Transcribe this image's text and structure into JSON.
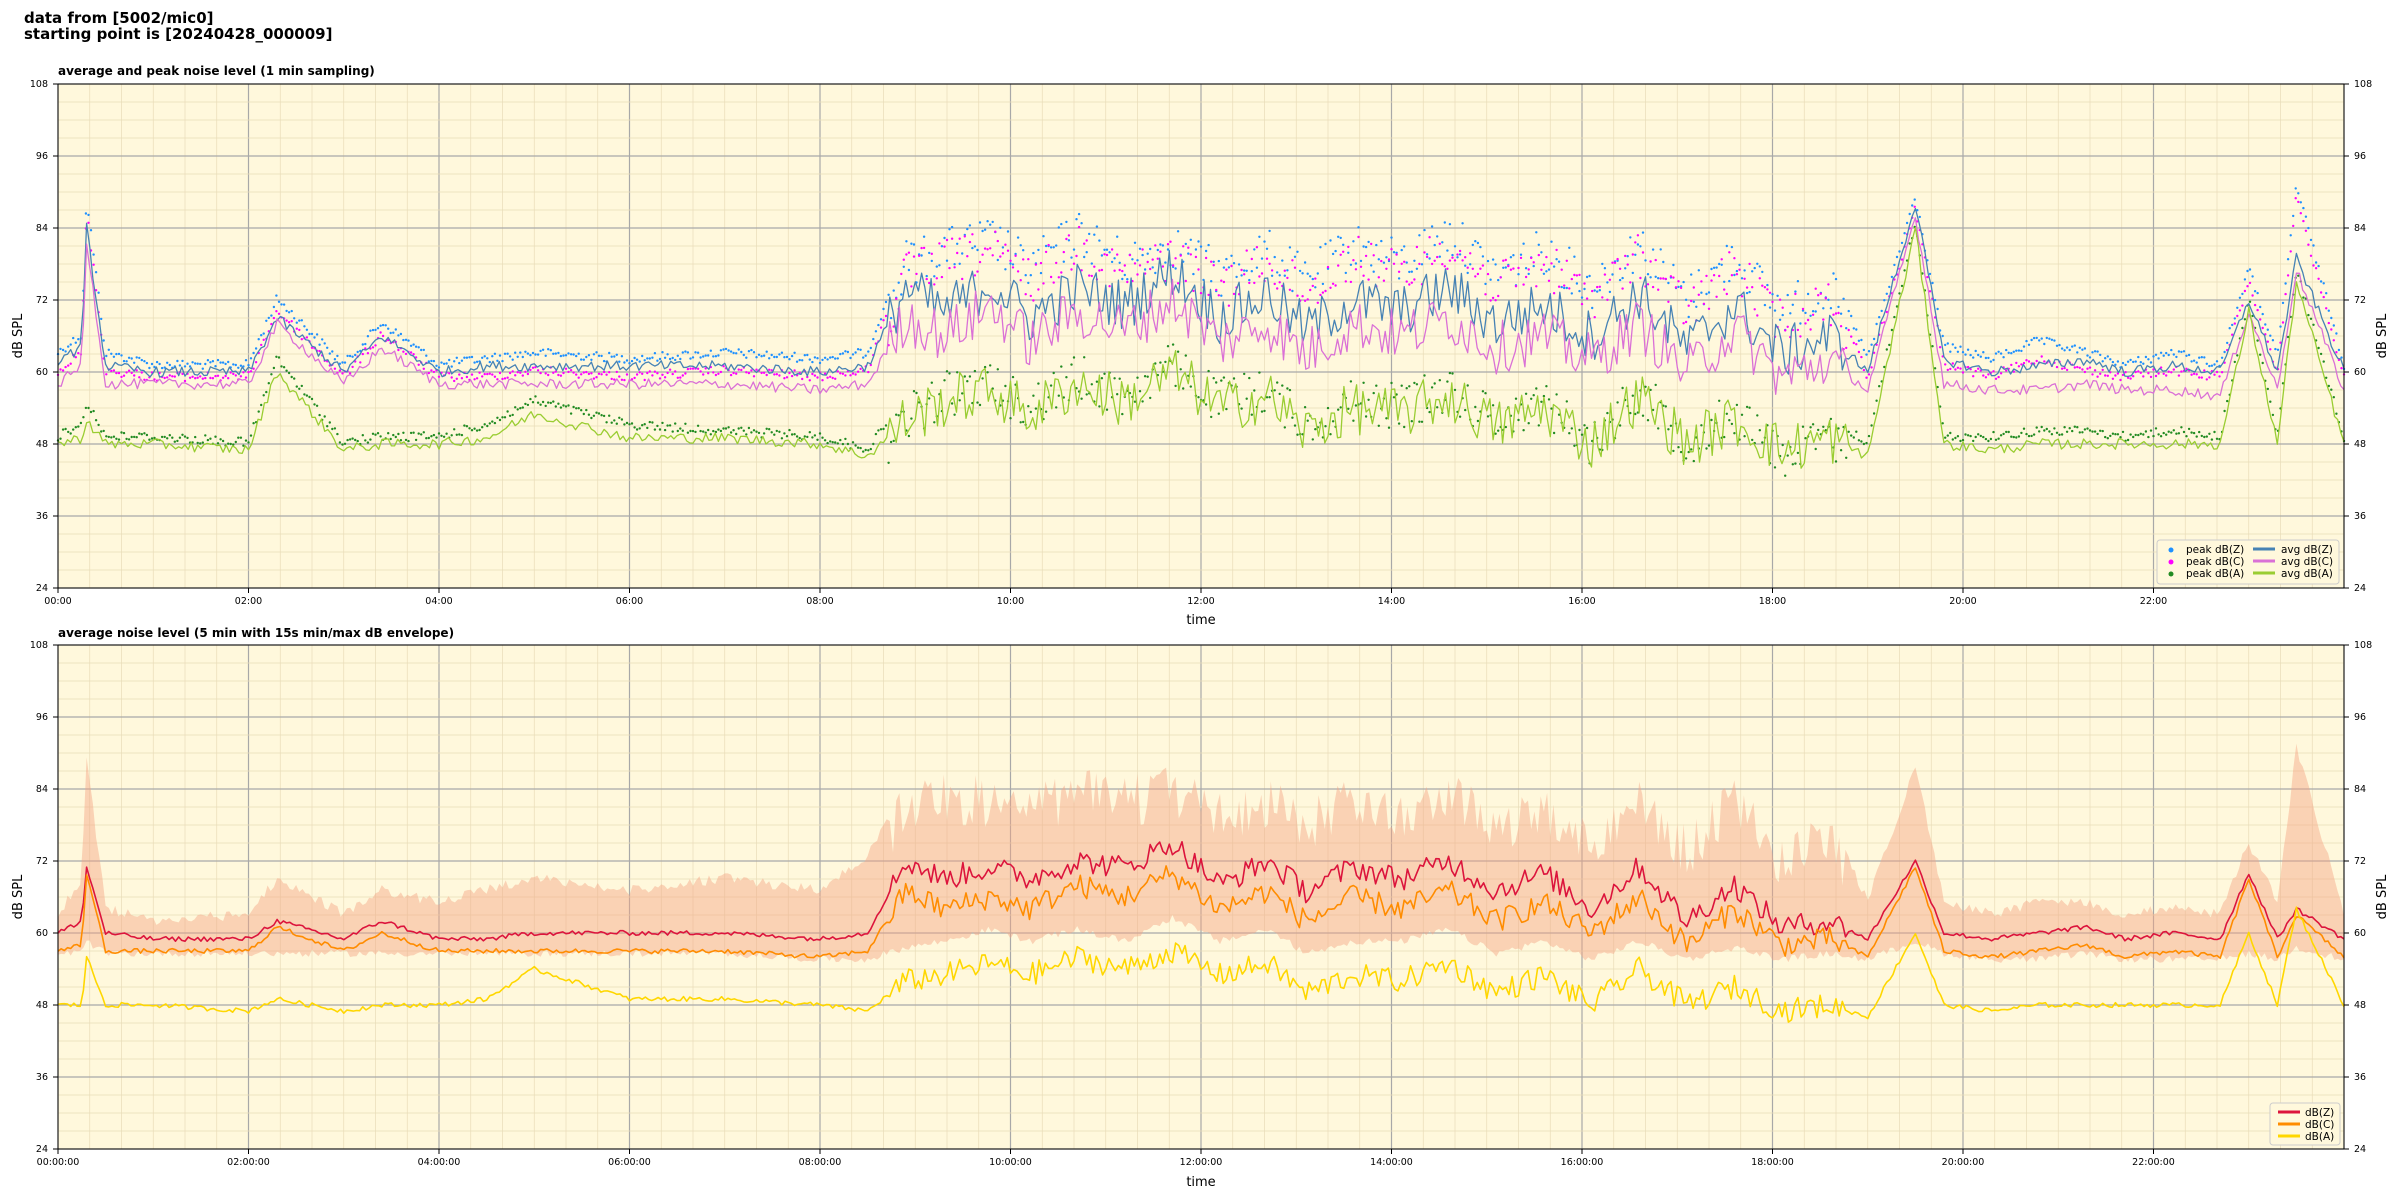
{
  "header": {
    "line1": "data from [5002/mic0]",
    "line2": "starting point is [20240428_000009]"
  },
  "colors": {
    "plot_bg": "#fff8dc",
    "peak_z": "#1e90ff",
    "peak_c": "#ff00ff",
    "peak_a": "#228b22",
    "avg_z": "#4682b4",
    "avg_c": "#da70d6",
    "avg_a": "#9acd32",
    "dBZ": "#dc143c",
    "dBC": "#ff8c00",
    "dBA": "#ffd700",
    "envelope": "#f4a582"
  },
  "chart_data": [
    {
      "type": "line",
      "title": "average and peak noise level (1 min sampling)",
      "xlabel": "time",
      "ylabel": "dB SPL",
      "x_unit": "hours",
      "xlim": [
        0,
        24
      ],
      "ylim": [
        24,
        108
      ],
      "yticks": [
        24,
        36,
        48,
        60,
        72,
        84,
        96,
        108
      ],
      "xtick_labels": [
        "00:00",
        "02:00",
        "04:00",
        "06:00",
        "08:00",
        "10:00",
        "12:00",
        "14:00",
        "16:00",
        "18:00",
        "20:00",
        "22:00"
      ],
      "grid": true,
      "legend_position": "bottom-right",
      "x": [
        0,
        0.25,
        0.3,
        0.5,
        1,
        2,
        2.3,
        3,
        3.4,
        4,
        4.5,
        5,
        6,
        7,
        8,
        8.5,
        8.9,
        9.3,
        9.8,
        10.2,
        10.7,
        11.2,
        11.7,
        12.2,
        12.7,
        13.1,
        13.6,
        14.1,
        14.6,
        15.1,
        15.6,
        16.1,
        16.6,
        17.1,
        17.6,
        18.1,
        18.6,
        19.0,
        19.5,
        19.8,
        20.3,
        20.8,
        21.3,
        21.7,
        22.2,
        22.7,
        23.0,
        23.3,
        23.5,
        24
      ],
      "series": [
        {
          "name": "avg dB(Z)",
          "style": "line",
          "values": [
            62,
            64,
            84,
            61,
            60,
            60,
            69,
            60,
            66,
            60,
            61,
            61,
            61,
            61,
            60,
            61,
            74,
            70,
            75,
            69,
            74,
            71,
            77,
            69,
            73,
            67,
            72,
            70,
            74,
            68,
            71,
            66,
            73,
            64,
            71,
            63,
            66,
            60,
            88,
            62,
            60,
            61,
            62,
            60,
            61,
            60,
            72,
            60,
            79,
            60
          ]
        },
        {
          "name": "avg dB(C)",
          "style": "line",
          "values": [
            58,
            61,
            82,
            58,
            58,
            58,
            68,
            58,
            64,
            58,
            58,
            58,
            58,
            58,
            57,
            58,
            69,
            66,
            71,
            65,
            70,
            67,
            72,
            65,
            68,
            63,
            68,
            66,
            69,
            64,
            66,
            62,
            68,
            60,
            67,
            59,
            62,
            57,
            86,
            58,
            57,
            57,
            58,
            57,
            57,
            56,
            70,
            57,
            77,
            57
          ]
        },
        {
          "name": "avg dB(A)",
          "style": "line",
          "values": [
            48,
            49,
            52,
            48,
            48,
            47,
            60,
            47,
            48,
            48,
            49,
            53,
            49,
            49,
            48,
            46,
            52,
            55,
            57,
            53,
            58,
            55,
            60,
            54,
            56,
            50,
            54,
            53,
            56,
            51,
            54,
            48,
            56,
            48,
            52,
            47,
            49,
            46,
            84,
            48,
            47,
            48,
            48,
            48,
            48,
            48,
            70,
            48,
            75,
            48
          ]
        },
        {
          "name": "peak dB(Z)",
          "style": "scatter",
          "values": [
            64,
            67,
            90,
            64,
            62,
            62,
            73,
            62,
            69,
            62,
            63,
            64,
            63,
            64,
            63,
            64,
            82,
            84,
            86,
            81,
            87,
            82,
            85,
            80,
            84,
            79,
            85,
            82,
            87,
            80,
            84,
            78,
            85,
            76,
            83,
            74,
            78,
            63,
            90,
            65,
            63,
            66,
            64,
            62,
            64,
            62,
            78,
            63,
            92,
            62
          ]
        },
        {
          "name": "peak dB(C)",
          "style": "scatter",
          "values": [
            61,
            64,
            88,
            61,
            60,
            60,
            71,
            60,
            67,
            60,
            60,
            61,
            60,
            61,
            60,
            61,
            80,
            82,
            84,
            79,
            85,
            80,
            83,
            78,
            82,
            77,
            83,
            80,
            85,
            78,
            82,
            76,
            83,
            74,
            81,
            72,
            76,
            60,
            88,
            62,
            60,
            63,
            61,
            60,
            61,
            60,
            76,
            60,
            90,
            60
          ]
        },
        {
          "name": "peak dB(A)",
          "style": "scatter",
          "values": [
            50,
            52,
            56,
            50,
            50,
            49,
            63,
            49,
            50,
            50,
            52,
            56,
            52,
            51,
            50,
            48,
            56,
            60,
            62,
            58,
            63,
            60,
            65,
            59,
            61,
            55,
            59,
            58,
            61,
            56,
            59,
            52,
            61,
            52,
            57,
            50,
            53,
            49,
            86,
            50,
            50,
            51,
            51,
            50,
            51,
            50,
            73,
            50,
            78,
            50
          ]
        }
      ]
    },
    {
      "type": "line",
      "title": "average noise level (5 min with 15s min/max dB envelope)",
      "xlabel": "time",
      "ylabel": "dB SPL",
      "x_unit": "hours",
      "xlim": [
        0,
        24
      ],
      "ylim": [
        24,
        108
      ],
      "yticks": [
        24,
        36,
        48,
        60,
        72,
        84,
        96,
        108
      ],
      "xtick_labels": [
        "00:00:00",
        "02:00:00",
        "04:00:00",
        "06:00:00",
        "08:00:00",
        "10:00:00",
        "12:00:00",
        "14:00:00",
        "16:00:00",
        "18:00:00",
        "20:00:00",
        "22:00:00"
      ],
      "grid": true,
      "legend_position": "bottom-right",
      "x": [
        0,
        0.25,
        0.3,
        0.5,
        1,
        2,
        2.3,
        3,
        3.4,
        4,
        4.5,
        5,
        6,
        7,
        8,
        8.5,
        8.9,
        9.3,
        9.8,
        10.2,
        10.7,
        11.2,
        11.7,
        12.2,
        12.7,
        13.1,
        13.6,
        14.1,
        14.6,
        15.1,
        15.6,
        16.1,
        16.6,
        17.1,
        17.6,
        18.1,
        18.6,
        19.0,
        19.5,
        19.8,
        20.3,
        20.8,
        21.3,
        21.7,
        22.2,
        22.7,
        23.0,
        23.3,
        23.5,
        24
      ],
      "envelope_max": [
        64,
        70,
        90,
        65,
        63,
        64,
        70,
        64,
        68,
        66,
        68,
        70,
        68,
        70,
        68,
        74,
        86,
        87,
        86,
        84,
        88,
        86,
        88,
        84,
        86,
        82,
        86,
        84,
        88,
        82,
        85,
        80,
        86,
        78,
        86,
        76,
        80,
        66,
        89,
        66,
        64,
        66,
        66,
        64,
        65,
        64,
        76,
        66,
        92,
        64
      ],
      "envelope_min": [
        56,
        56,
        58,
        56,
        56,
        56,
        56,
        56,
        56,
        56,
        56,
        56,
        56,
        56,
        55,
        55,
        57,
        58,
        60,
        58,
        60,
        58,
        62,
        58,
        60,
        56,
        58,
        58,
        60,
        56,
        58,
        55,
        58,
        55,
        57,
        55,
        56,
        55,
        58,
        56,
        55,
        55,
        56,
        55,
        55,
        55,
        56,
        55,
        57,
        55
      ],
      "series": [
        {
          "name": "dB(Z)",
          "values": [
            60,
            62,
            71,
            60,
            59,
            59,
            62,
            59,
            62,
            59,
            59,
            60,
            60,
            60,
            59,
            60,
            72,
            69,
            71,
            69,
            72,
            71,
            75,
            68,
            72,
            67,
            71,
            69,
            72,
            67,
            70,
            64,
            71,
            62,
            68,
            61,
            62,
            59,
            72,
            60,
            59,
            60,
            61,
            59,
            60,
            59,
            70,
            59,
            64,
            59
          ]
        },
        {
          "name": "dB(C)",
          "values": [
            57,
            58,
            70,
            57,
            57,
            57,
            61,
            57,
            60,
            57,
            57,
            57,
            57,
            57,
            56,
            57,
            67,
            64,
            66,
            64,
            68,
            66,
            70,
            64,
            67,
            62,
            66,
            64,
            67,
            62,
            65,
            60,
            66,
            58,
            64,
            58,
            59,
            56,
            71,
            57,
            56,
            57,
            58,
            56,
            57,
            56,
            69,
            56,
            63,
            56
          ]
        },
        {
          "name": "dB(A)",
          "values": [
            48,
            48,
            56,
            48,
            48,
            47,
            49,
            47,
            48,
            48,
            49,
            54,
            49,
            49,
            48,
            47,
            52,
            53,
            55,
            53,
            56,
            54,
            57,
            53,
            55,
            50,
            53,
            52,
            55,
            50,
            53,
            48,
            54,
            48,
            51,
            47,
            48,
            46,
            60,
            48,
            47,
            48,
            48,
            48,
            48,
            48,
            60,
            48,
            64,
            48
          ]
        }
      ]
    }
  ]
}
